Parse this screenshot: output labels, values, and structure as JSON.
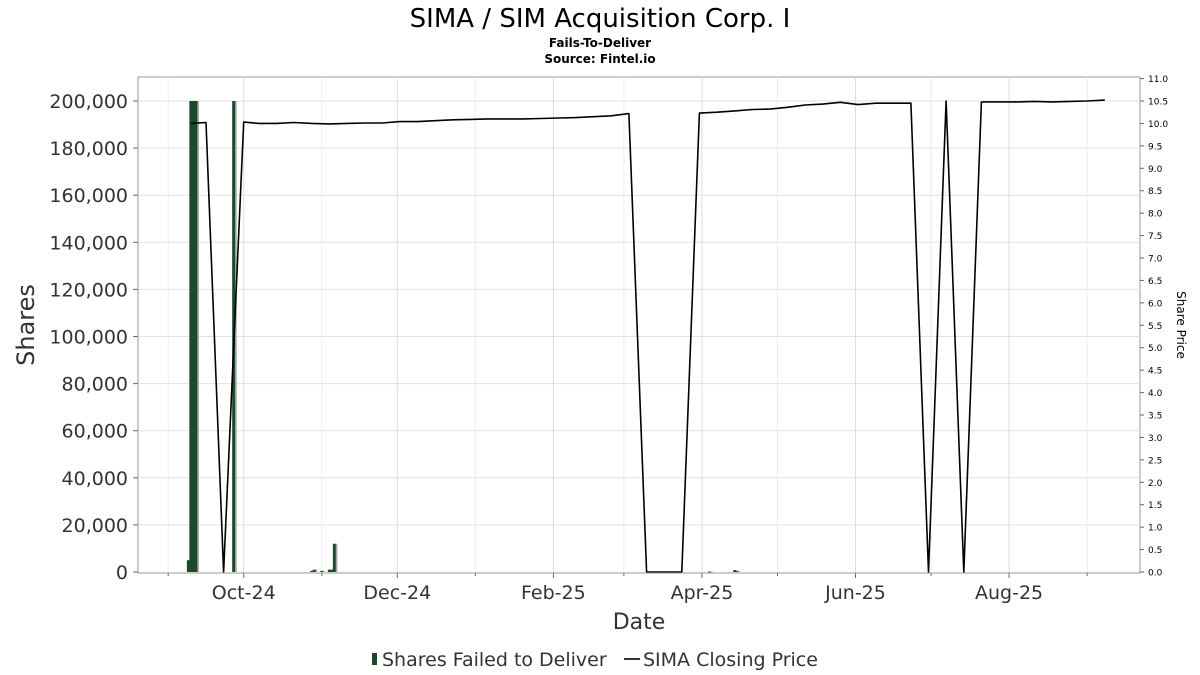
{
  "chart_data": {
    "type": "bar",
    "title": "SIMA / SIM Acquisition Corp. I",
    "subtitle": "Fails-To-Deliver",
    "source": "Source: Fintel.io",
    "xlabel": "Date",
    "ylabel": "Shares",
    "y2label": "Share Price",
    "x_ticks": [
      "Oct-24",
      "Dec-24",
      "Feb-25",
      "Apr-25",
      "Jun-25",
      "Aug-25"
    ],
    "x_range": [
      "2024-08-20",
      "2025-09-22"
    ],
    "ylim": [
      0,
      210000
    ],
    "y_ticks": [
      0,
      20000,
      40000,
      60000,
      80000,
      100000,
      120000,
      140000,
      160000,
      180000,
      200000
    ],
    "y_tick_labels": [
      "0",
      "20,000",
      "40,000",
      "60,000",
      "80,000",
      "100,000",
      "120,000",
      "140,000",
      "160,000",
      "180,000",
      "200,000"
    ],
    "y2lim": [
      0,
      11
    ],
    "y2_ticks": [
      0,
      0.5,
      1,
      1.5,
      2,
      2.5,
      3,
      3.5,
      4,
      4.5,
      5,
      5.5,
      6,
      6.5,
      7,
      7.5,
      8,
      8.5,
      9,
      9.5,
      10,
      10.5,
      11
    ],
    "y2_tick_labels": [
      "0.0",
      "0.5",
      "1.0",
      "1.5",
      "2.0",
      "2.5",
      "3.0",
      "3.5",
      "4.0",
      "4.5",
      "5.0",
      "5.5",
      "6.0",
      "6.5",
      "7.0",
      "7.5",
      "8.0",
      "8.5",
      "9.0",
      "9.5",
      "10.0",
      "10.5",
      "11.0"
    ],
    "grid": true,
    "legend_position": "bottom-center",
    "series": [
      {
        "name": "Shares Failed to Deliver",
        "type": "bar",
        "color": "#1a4a2a",
        "x": [
          "2024-09-09",
          "2024-09-10",
          "2024-09-11",
          "2024-09-12",
          "2024-09-27",
          "2024-10-28",
          "2024-10-29",
          "2024-11-01",
          "2024-11-04",
          "2024-11-05",
          "2024-11-06",
          "2025-04-04",
          "2025-04-14",
          "2025-04-15"
        ],
        "values": [
          5000,
          200000,
          200000,
          200000,
          200000,
          500,
          1000,
          500,
          1000,
          1000,
          12000,
          200,
          800,
          300
        ]
      },
      {
        "name": "SIMA Closing Price",
        "type": "line",
        "color": "#000000",
        "x": [
          "2024-09-10",
          "2024-09-16",
          "2024-09-23",
          "2024-10-01",
          "2024-10-07",
          "2024-10-14",
          "2024-10-21",
          "2024-10-28",
          "2024-11-04",
          "2024-11-11",
          "2024-11-18",
          "2024-11-25",
          "2024-12-02",
          "2024-12-09",
          "2024-12-16",
          "2024-12-23",
          "2024-12-30",
          "2025-01-06",
          "2025-01-13",
          "2025-01-20",
          "2025-01-27",
          "2025-02-03",
          "2025-02-10",
          "2025-02-17",
          "2025-02-24",
          "2025-03-03",
          "2025-03-10",
          "2025-03-24",
          "2025-03-31",
          "2025-04-07",
          "2025-04-14",
          "2025-04-21",
          "2025-04-28",
          "2025-05-05",
          "2025-05-12",
          "2025-05-19",
          "2025-05-26",
          "2025-06-02",
          "2025-06-09",
          "2025-06-16",
          "2025-06-23",
          "2025-06-30",
          "2025-07-07",
          "2025-07-14",
          "2025-07-21",
          "2025-07-28",
          "2025-08-04",
          "2025-08-11",
          "2025-08-18",
          "2025-08-25",
          "2025-09-01",
          "2025-09-08"
        ],
        "values": [
          10.0,
          10.02,
          0.0,
          10.03,
          10.0,
          10.0,
          10.02,
          10.0,
          9.99,
          10.0,
          10.01,
          10.01,
          10.04,
          10.04,
          10.06,
          10.08,
          10.09,
          10.1,
          10.1,
          10.1,
          10.11,
          10.12,
          10.13,
          10.15,
          10.17,
          10.22,
          0.0,
          0.0,
          10.23,
          10.25,
          10.28,
          10.31,
          10.32,
          10.36,
          10.41,
          10.43,
          10.47,
          10.42,
          10.45,
          10.45,
          10.45,
          0.0,
          10.5,
          0.0,
          10.48,
          10.48,
          10.48,
          10.49,
          10.48,
          10.49,
          10.5,
          10.52
        ]
      }
    ]
  }
}
